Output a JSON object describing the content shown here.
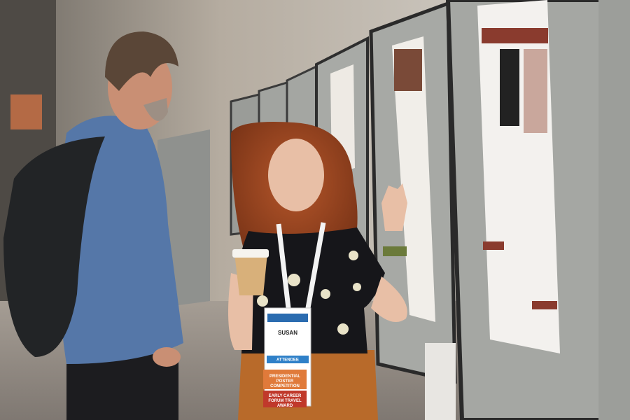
{
  "badge": {
    "name": "SUSAN",
    "role": "ATTENDEE",
    "ribbons": [
      "PRESIDENTIAL POSTER COMPETITION",
      "EARLY CAREER FORUM TRAVEL AWARD"
    ]
  }
}
